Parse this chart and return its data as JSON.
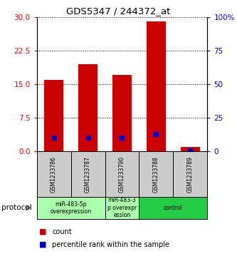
{
  "title": "GDS5347 / 244372_at",
  "samples": [
    "GSM1233786",
    "GSM1233787",
    "GSM1233790",
    "GSM1233788",
    "GSM1233789"
  ],
  "count_values": [
    16.0,
    19.5,
    17.0,
    29.0,
    1.0
  ],
  "percentile_values": [
    10.5,
    10.5,
    10.5,
    13.0,
    0.5
  ],
  "ylim_left": [
    0,
    30
  ],
  "ylim_right": [
    0,
    100
  ],
  "yticks_left": [
    0,
    7.5,
    15,
    22.5,
    30
  ],
  "yticks_right": [
    0,
    25,
    50,
    75,
    100
  ],
  "bar_color": "#cc0000",
  "percentile_color": "#0000cc",
  "bar_width": 0.55,
  "group_spans": [
    [
      0,
      1,
      "miR-483-5p\noverexpression",
      "#aaffaa"
    ],
    [
      2,
      2,
      "miR-483-3\np overexpr\nession",
      "#aaffaa"
    ],
    [
      3,
      4,
      "control",
      "#22cc44"
    ]
  ],
  "legend_count_label": "count",
  "legend_percentile_label": "percentile rank within the sample",
  "background_color": "#ffffff"
}
